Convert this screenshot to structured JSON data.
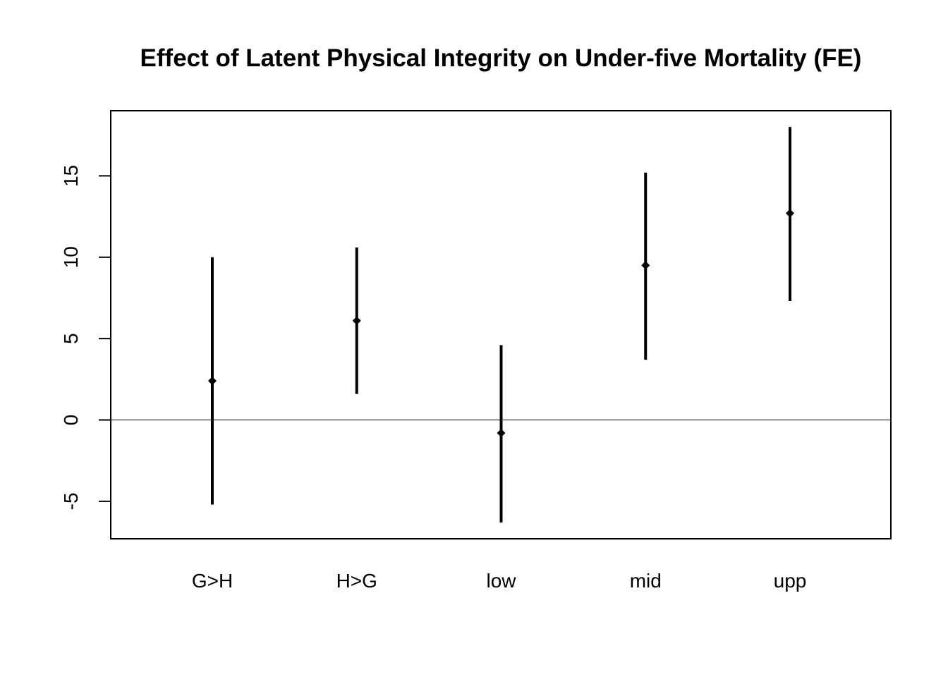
{
  "chart_data": {
    "type": "errorbar",
    "title": "Effect of Latent Physical Integrity on Under-five Mortality (FE)",
    "xlabel": "",
    "ylabel": "",
    "categories": [
      "G>H",
      "H>G",
      "low",
      "mid",
      "upp"
    ],
    "estimates": [
      2.4,
      6.1,
      -0.8,
      9.5,
      12.7
    ],
    "lower": [
      -5.2,
      1.6,
      -6.3,
      3.7,
      7.3
    ],
    "upper": [
      10.0,
      10.6,
      4.6,
      15.2,
      18.0
    ],
    "ylim": [
      -7.3,
      19.0
    ],
    "yticks": [
      -5,
      0,
      5,
      10,
      15
    ],
    "reference_line": 0,
    "grid": false,
    "legend": "none",
    "color": "#000000"
  }
}
